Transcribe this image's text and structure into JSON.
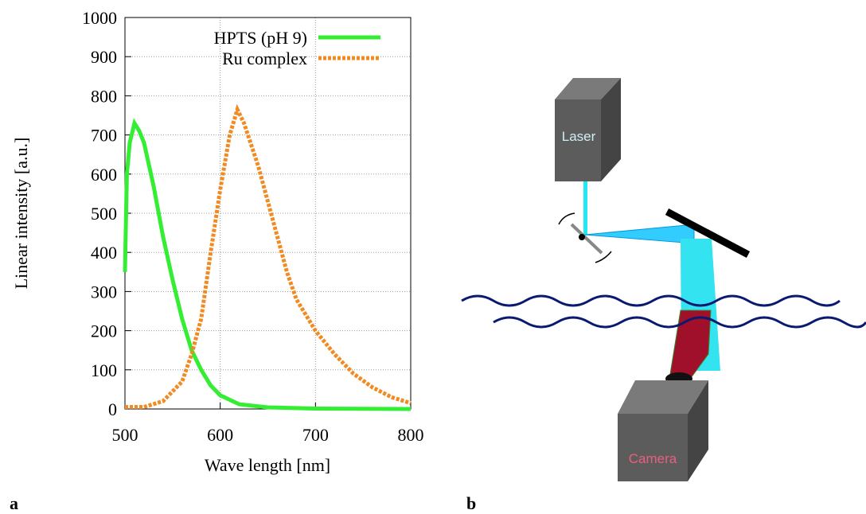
{
  "chart_data": {
    "type": "line",
    "xlabel": "Wave length [nm]",
    "ylabel": "Linear intensity [a.u.]",
    "xlim": [
      500,
      800
    ],
    "xticks": [
      500,
      600,
      700,
      800
    ],
    "ylim": [
      0,
      1000
    ],
    "yticks": [
      0,
      100,
      200,
      300,
      400,
      500,
      600,
      700,
      800,
      900,
      1000
    ],
    "grid": true,
    "legend": "top-right",
    "series": [
      {
        "name": "HPTS (pH 9)",
        "color": "#33ee33",
        "style": "solid",
        "x": [
          500,
          502,
          505,
          510,
          515,
          520,
          530,
          540,
          550,
          560,
          570,
          580,
          590,
          600,
          620,
          650,
          700,
          800
        ],
        "values": [
          350,
          600,
          680,
          730,
          710,
          680,
          570,
          440,
          330,
          230,
          150,
          100,
          60,
          35,
          12,
          4,
          1,
          0
        ]
      },
      {
        "name": "Ru complex",
        "color": "#f28a22",
        "style": "dashed",
        "x": [
          500,
          520,
          540,
          560,
          570,
          580,
          590,
          600,
          610,
          618,
          625,
          640,
          650,
          660,
          670,
          680,
          690,
          700,
          720,
          740,
          760,
          780,
          800
        ],
        "values": [
          5,
          5,
          20,
          70,
          140,
          230,
          400,
          560,
          700,
          765,
          730,
          620,
          530,
          440,
          350,
          280,
          240,
          200,
          140,
          90,
          55,
          30,
          15
        ]
      }
    ]
  },
  "panels": [
    "a",
    "b"
  ],
  "diagram": {
    "laser": "Laser",
    "camera": "Camera"
  }
}
